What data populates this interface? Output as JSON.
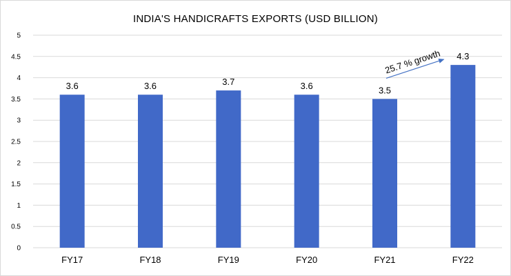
{
  "chart_data": {
    "type": "bar",
    "title": "INDIA'S HANDICRAFTS EXPORTS (USD BILLION)",
    "categories": [
      "FY17",
      "FY18",
      "FY19",
      "FY20",
      "FY21",
      "FY22"
    ],
    "values": [
      3.6,
      3.6,
      3.7,
      3.6,
      3.5,
      4.3
    ],
    "data_labels": [
      "3.6",
      "3.6",
      "3.7",
      "3.6",
      "3.5",
      "4.3"
    ],
    "ylim": [
      0,
      5
    ],
    "yticks": [
      "0",
      "0.5",
      "1",
      "1.5",
      "2",
      "2.5",
      "3",
      "3.5",
      "4",
      "4.5",
      "5"
    ],
    "grid": true,
    "bar_color": "#4169c8",
    "annotation": {
      "text": "25.7 %  growth",
      "from_category": "FY21",
      "to_category": "FY22"
    }
  }
}
